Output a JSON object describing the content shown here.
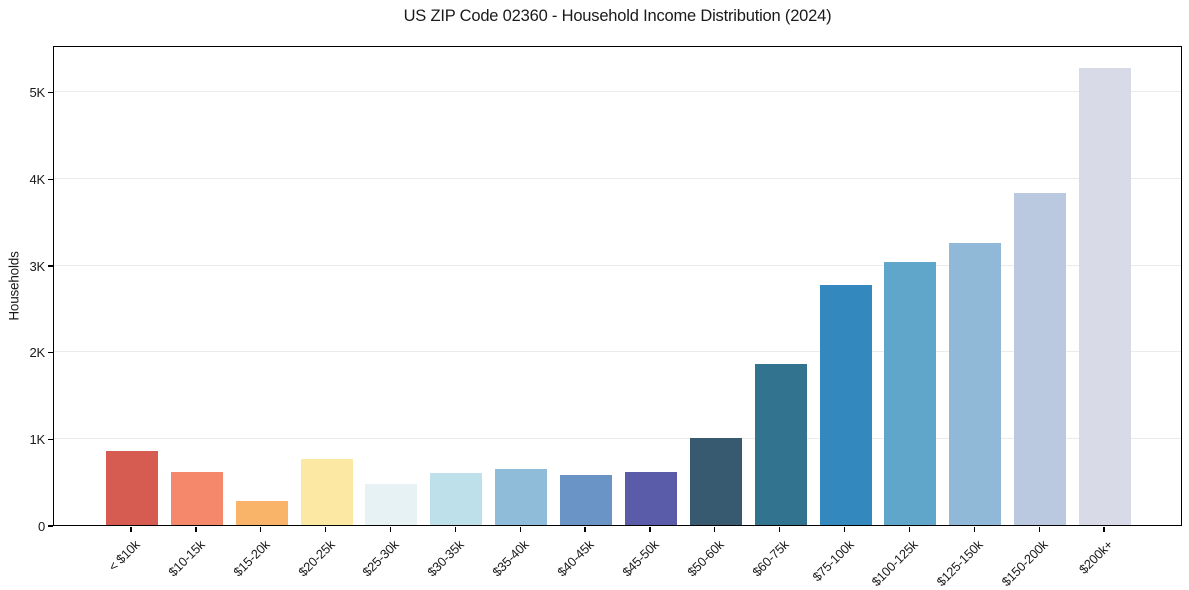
{
  "chart_data": {
    "type": "bar",
    "title": "US ZIP Code 02360 - Household Income Distribution (2024)",
    "xlabel": "",
    "ylabel": "Households",
    "categories": [
      "< $10k",
      "$10-15k",
      "$15-20k",
      "$20-25k",
      "$25-30k",
      "$30-35k",
      "$35-40k",
      "$40-45k",
      "$45-50k",
      "$50-60k",
      "$60-75k",
      "$75-100k",
      "$100-125k",
      "$125-150k",
      "$150-200k",
      "$200k+"
    ],
    "values": [
      855,
      610,
      280,
      760,
      470,
      600,
      645,
      575,
      610,
      1010,
      1855,
      2765,
      3030,
      3250,
      3835,
      5275
    ],
    "bar_colors": [
      "#d65c52",
      "#f5886a",
      "#f9b469",
      "#fce8a2",
      "#e7f2f4",
      "#bde0ea",
      "#8fbcd9",
      "#6a93c6",
      "#5a5ca9",
      "#375a70",
      "#32738f",
      "#3389bd",
      "#60a6ca",
      "#90b8d7",
      "#bac9df",
      "#d8dae8"
    ],
    "ylim": [
      0,
      5540
    ],
    "ytick_values": [
      0,
      1000,
      2000,
      3000,
      4000,
      5000
    ],
    "ytick_labels": [
      "0",
      "1K",
      "2K",
      "3K",
      "4K",
      "5K"
    ],
    "grid": "horizontal",
    "grid_color": "#ebebeb",
    "axis_color": "#000000",
    "text_color": "#1a1a1a",
    "background": "#ffffff",
    "legend": "none"
  }
}
